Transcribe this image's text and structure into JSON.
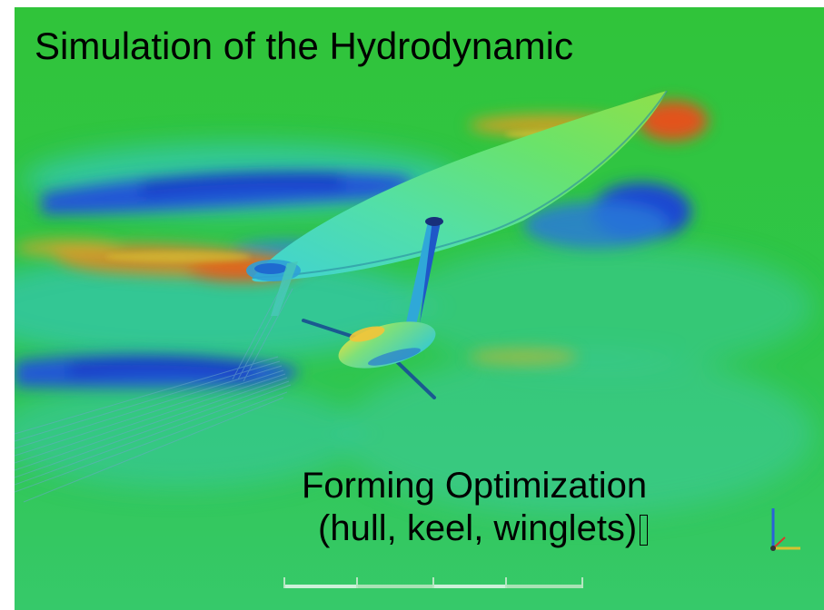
{
  "slide": {
    "title": "Simulation of the Hydrodynamic",
    "caption_line1": "Forming Optimization",
    "caption_line2": "(hull, keel, winglets)"
  },
  "image": {
    "subject": "cfd-flow-field-yacht-hull-keel-winglets",
    "colors": {
      "background": "#2fc23a",
      "low_pressure": "#1f3fd0",
      "high_pressure": "#e2531c",
      "mid_cyan": "#2ec8c8",
      "hull": "#56e08a"
    }
  }
}
